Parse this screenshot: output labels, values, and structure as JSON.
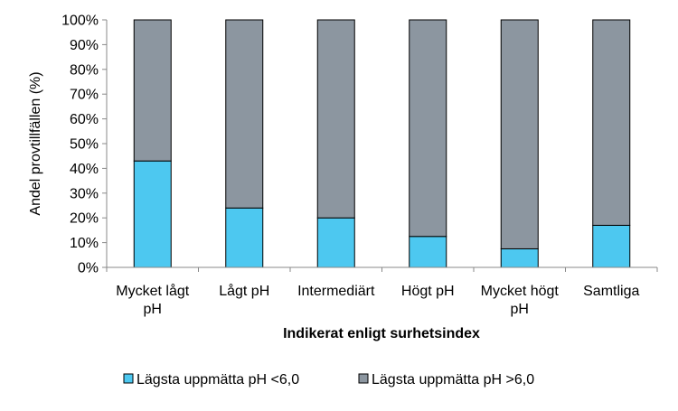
{
  "chart_data": {
    "type": "bar",
    "stacked": true,
    "normalized": true,
    "title": "",
    "xlabel": "Indikerat enligt surhetsindex",
    "ylabel": "Andel provtillfällen (%)",
    "ylim": [
      0,
      100
    ],
    "yticks": [
      "0%",
      "10%",
      "20%",
      "30%",
      "40%",
      "50%",
      "60%",
      "70%",
      "80%",
      "90%",
      "100%"
    ],
    "categories": [
      [
        "Mycket lågt",
        "pH"
      ],
      [
        "Lågt pH"
      ],
      [
        "Intermediärt"
      ],
      [
        "Högt pH"
      ],
      [
        "Mycket högt",
        "pH"
      ],
      [
        "Samtliga"
      ]
    ],
    "series": [
      {
        "name": "Lägsta uppmätta pH <6,0",
        "color": "#4DC8F0",
        "values": [
          43,
          24,
          20,
          12.5,
          7.5,
          17
        ]
      },
      {
        "name": "Lägsta uppmätta pH >6,0",
        "color": "#8C96A0",
        "values": [
          57,
          76,
          80,
          87.5,
          92.5,
          83
        ]
      }
    ],
    "grid": false,
    "legend_position": "bottom"
  }
}
